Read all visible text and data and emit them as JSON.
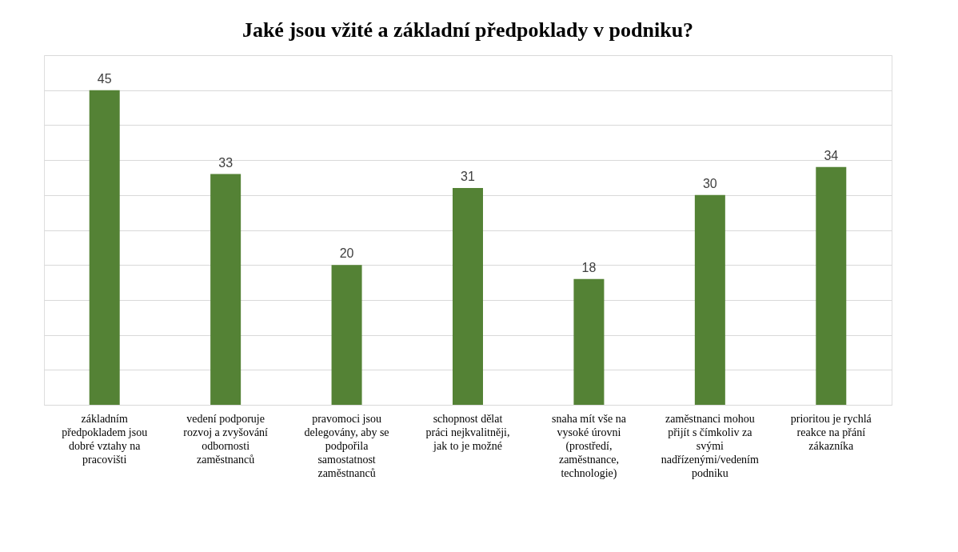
{
  "chart_data": {
    "type": "bar",
    "title": "Jaké jsou vžité a základní předpoklady v podniku?",
    "categories": [
      "základním předpokladem jsou dobré vztahy na pracovišti",
      "vedení podporuje rozvoj a zvyšování odbornosti zaměstnanců",
      "pravomoci jsou delegovány, aby se podpořila samostatnost zaměstnanců",
      "schopnost dělat práci nejkvalitněji, jak to je možné",
      "snaha mít vše na vysoké úrovni (prostředí, zaměstnance, technologie)",
      "zaměstnanci mohou přijít s čímkoliv za svými nadřízenými/vedením podniku",
      "prioritou je rychlá reakce na přání zákazníka"
    ],
    "values": [
      45,
      33,
      20,
      31,
      18,
      30,
      34
    ],
    "color": "#548235",
    "data_labels": true,
    "ylim": [
      0,
      50
    ],
    "yticks": [
      {
        "value": 0,
        "label": null
      },
      {
        "value": 5,
        "label": null
      },
      {
        "value": 10,
        "label": null
      },
      {
        "value": 15,
        "label": null
      },
      {
        "value": 20,
        "label": null
      },
      {
        "value": 25,
        "label": null
      },
      {
        "value": 30,
        "label": null
      },
      {
        "value": 35,
        "label": null
      },
      {
        "value": 40,
        "label": null
      },
      {
        "value": 45,
        "label": null
      },
      {
        "value": 50,
        "label": null
      }
    ],
    "tick_labels": "x",
    "grid": "y"
  }
}
